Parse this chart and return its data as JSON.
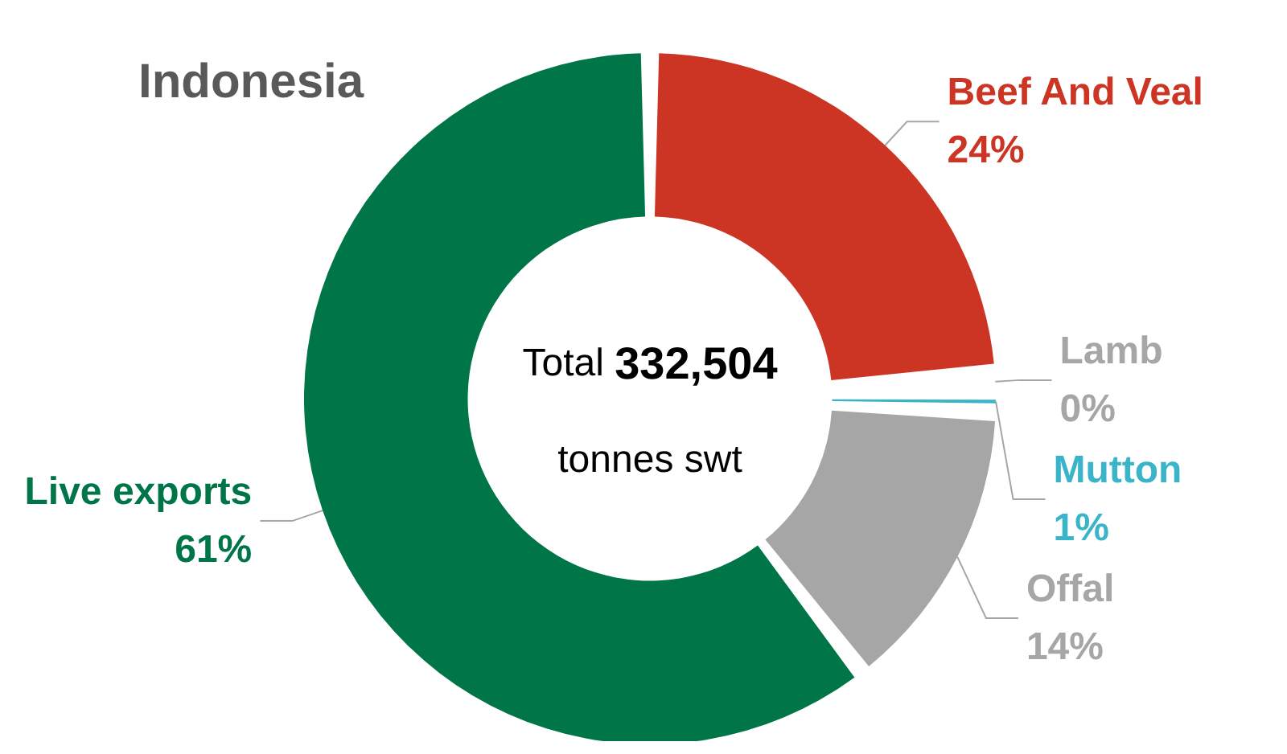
{
  "chart_data": {
    "type": "donut",
    "title": "Indonesia",
    "categories": [
      "Beef And Veal",
      "Lamb",
      "Mutton",
      "Offal",
      "Live exports"
    ],
    "values": [
      24,
      0,
      1,
      14,
      61
    ],
    "value_labels": [
      "24%",
      "0%",
      "1%",
      "14%",
      "61%"
    ],
    "colors": [
      "#cc3524",
      "#a6a6a6",
      "#3ab4c9",
      "#a6a6a6",
      "#007648"
    ],
    "annotations": [
      "Total 332,504",
      "tonnes swt"
    ],
    "legend": false
  }
}
